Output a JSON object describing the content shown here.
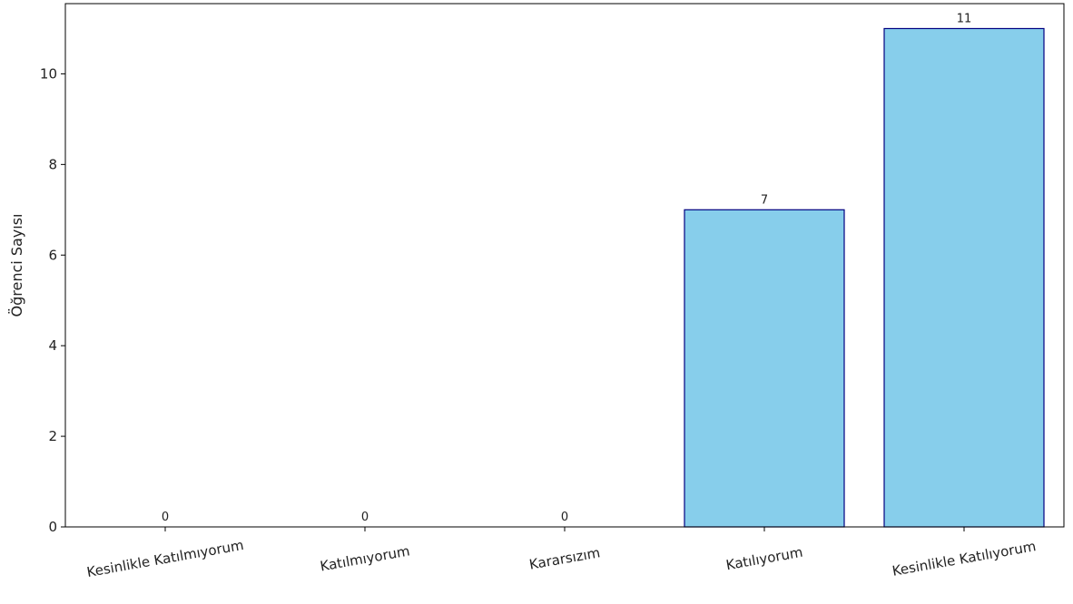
{
  "chart_data": {
    "type": "bar",
    "categories": [
      "Kesinlikle Katılmıyorum",
      "Katılmıyorum",
      "Kararsızım",
      "Katılıyorum",
      "Kesinlikle Katılıyorum"
    ],
    "values": [
      0,
      0,
      0,
      7,
      11
    ],
    "ylabel": "Öğrenci Sayısı",
    "ylim": [
      0,
      11.55
    ],
    "yticks": [
      0,
      2,
      4,
      6,
      8,
      10
    ],
    "grid": false,
    "bar_color": "#87CEEB",
    "bar_edge_color": "#000080"
  }
}
